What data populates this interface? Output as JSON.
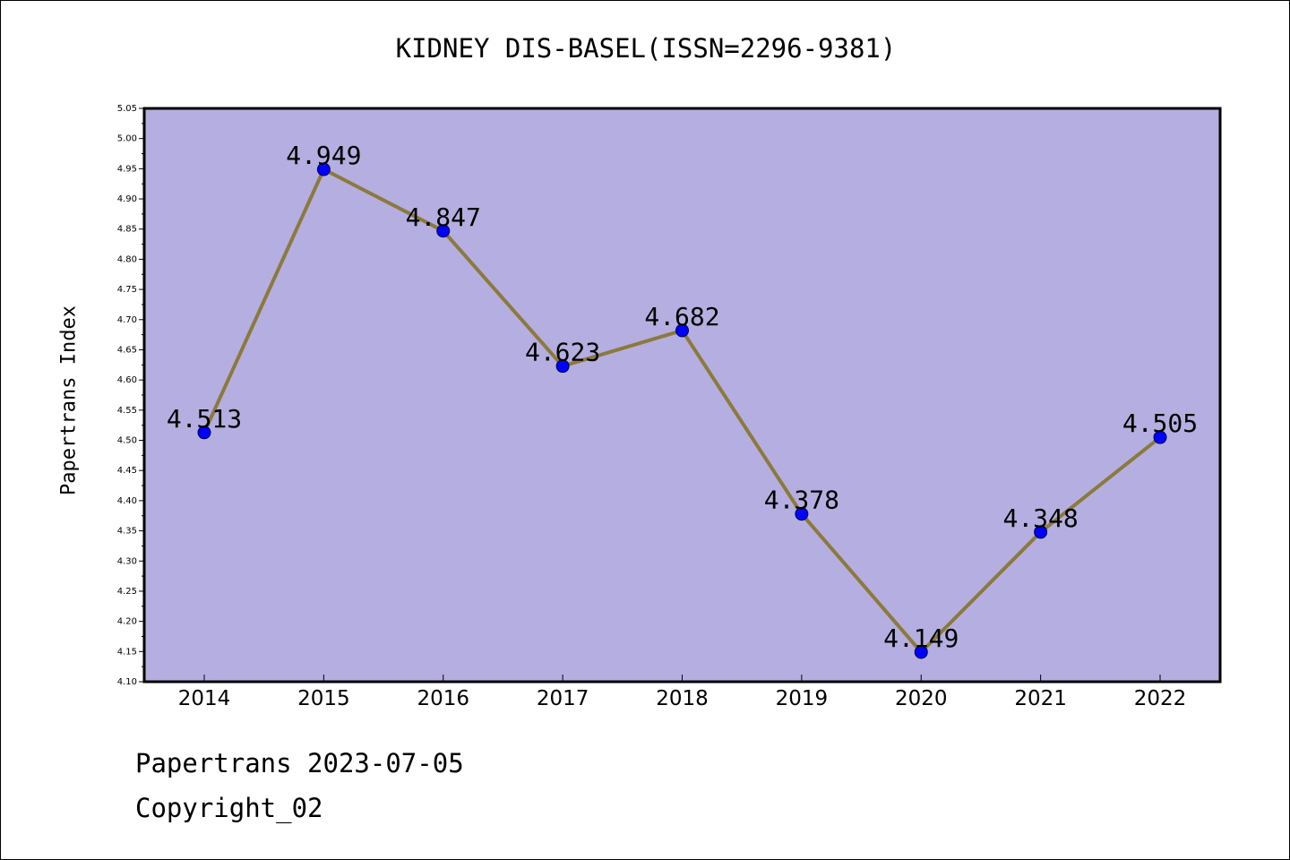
{
  "chart_data": {
    "type": "line",
    "title": "KIDNEY DIS-BASEL(ISSN=2296-9381)",
    "xlabel": "",
    "ylabel": "Papertrans Index",
    "categories": [
      "2014",
      "2015",
      "2016",
      "2017",
      "2018",
      "2019",
      "2020",
      "2021",
      "2022"
    ],
    "values": [
      4.513,
      4.949,
      4.847,
      4.623,
      4.682,
      4.378,
      4.149,
      4.348,
      4.505
    ],
    "data_labels": [
      "4.513",
      "4.949",
      "4.847",
      "4.623",
      "4.682",
      "4.378",
      "4.149",
      "4.348",
      "4.505"
    ],
    "ylim": [
      4.1,
      5.05
    ],
    "yticks": [
      "4.10",
      "4.15",
      "4.20",
      "4.25",
      "4.30",
      "4.35",
      "4.40",
      "4.45",
      "4.50",
      "4.55",
      "4.60",
      "4.65",
      "4.70",
      "4.75",
      "4.80",
      "4.85",
      "4.90",
      "4.95",
      "5.00",
      "5.05"
    ],
    "grid": false,
    "legend": "none",
    "colors": {
      "plot_background": "#b4aee1",
      "line": "#8b7a3c",
      "marker": "#0000ff"
    }
  },
  "footer": {
    "date_text": "Papertrans 2023-07-05",
    "copyright_text": "Copyright_02"
  }
}
